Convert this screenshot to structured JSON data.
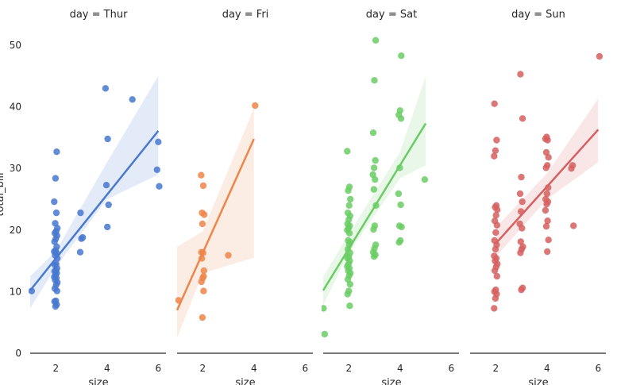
{
  "chart_data": {
    "type": "scatter",
    "grid": false,
    "shared_y": true,
    "ylim": [
      0,
      55
    ],
    "yticks": [
      0,
      10,
      20,
      30,
      40,
      50
    ],
    "y_label": "total_bill",
    "xticks": [
      2,
      4,
      6
    ],
    "fit": "linear regression with 95% confidence band",
    "panels": [
      {
        "title": "day = Thur",
        "x_label": "size",
        "color": "#4878d0",
        "xlim": [
          1,
          6.3
        ],
        "points": [
          [
            1,
            10.1
          ],
          [
            2,
            7.6
          ],
          [
            2,
            7.9
          ],
          [
            2,
            8.4
          ],
          [
            2,
            8.5
          ],
          [
            2,
            10.1
          ],
          [
            2,
            10.5
          ],
          [
            2,
            11.1
          ],
          [
            2,
            11.5
          ],
          [
            2,
            11.9
          ],
          [
            2,
            12.2
          ],
          [
            2,
            12.4
          ],
          [
            2,
            12.7
          ],
          [
            2,
            13.0
          ],
          [
            2,
            13.3
          ],
          [
            2,
            13.4
          ],
          [
            2,
            13.8
          ],
          [
            2,
            14.3
          ],
          [
            2,
            14.5
          ],
          [
            2,
            15.4
          ],
          [
            2,
            15.9
          ],
          [
            2,
            16.3
          ],
          [
            2,
            16.5
          ],
          [
            2,
            16.7
          ],
          [
            2,
            17.3
          ],
          [
            2,
            18.1
          ],
          [
            2,
            18.6
          ],
          [
            2,
            19.1
          ],
          [
            2,
            19.5
          ],
          [
            2,
            19.8
          ],
          [
            2,
            20.3
          ],
          [
            2,
            21.1
          ],
          [
            2,
            22.8
          ],
          [
            2,
            24.6
          ],
          [
            2,
            28.4
          ],
          [
            2,
            32.7
          ],
          [
            3,
            16.4
          ],
          [
            3,
            18.6
          ],
          [
            3,
            18.8
          ],
          [
            3,
            22.8
          ],
          [
            4,
            20.5
          ],
          [
            4,
            24.1
          ],
          [
            4,
            27.3
          ],
          [
            4,
            34.8
          ],
          [
            4,
            43.0
          ],
          [
            5,
            41.2
          ],
          [
            6,
            27.1
          ],
          [
            6,
            29.8
          ],
          [
            6,
            34.3
          ]
        ],
        "regression": [
          [
            1,
            10.2
          ],
          [
            6,
            36.1
          ]
        ],
        "ci_band": [
          [
            1,
            7.3,
            12.5
          ],
          [
            2,
            14.0,
            16.6
          ],
          [
            4,
            25.0,
            31.0
          ],
          [
            6,
            29.0,
            45.0
          ]
        ]
      },
      {
        "title": "day = Fri",
        "x_label": "size",
        "color": "#ee854a",
        "xlim": [
          1,
          6.3
        ],
        "points": [
          [
            1,
            8.6
          ],
          [
            2,
            5.8
          ],
          [
            2,
            10.1
          ],
          [
            2,
            11.6
          ],
          [
            2,
            12.2
          ],
          [
            2,
            13.4
          ],
          [
            2,
            15.4
          ],
          [
            2,
            16.3
          ],
          [
            2,
            22.5
          ],
          [
            2,
            22.8
          ],
          [
            2,
            27.2
          ],
          [
            2,
            28.9
          ],
          [
            2,
            21.0
          ],
          [
            2,
            12.5
          ],
          [
            2,
            16.4
          ],
          [
            3,
            15.9
          ],
          [
            4,
            40.2
          ]
        ],
        "regression": [
          [
            1,
            7.0
          ],
          [
            4,
            34.8
          ]
        ],
        "ci_band": [
          [
            1,
            2.5,
            17.3
          ],
          [
            2,
            13.0,
            19.8
          ],
          [
            4,
            15.5,
            39.8
          ]
        ]
      },
      {
        "title": "day = Sat",
        "x_label": "size",
        "color": "#6acc64",
        "xlim": [
          1,
          6.3
        ],
        "points": [
          [
            1,
            3.1
          ],
          [
            1,
            7.3
          ],
          [
            2,
            7.7
          ],
          [
            2,
            9.6
          ],
          [
            2,
            10.1
          ],
          [
            2,
            11.2
          ],
          [
            2,
            12.0
          ],
          [
            2,
            12.6
          ],
          [
            2,
            13.0
          ],
          [
            2,
            13.4
          ],
          [
            2,
            13.8
          ],
          [
            2,
            14.1
          ],
          [
            2,
            14.5
          ],
          [
            2,
            15.0
          ],
          [
            2,
            15.4
          ],
          [
            2,
            15.7
          ],
          [
            2,
            16.3
          ],
          [
            2,
            16.9
          ],
          [
            2,
            17.6
          ],
          [
            2,
            18.0
          ],
          [
            2,
            18.3
          ],
          [
            2,
            19.5
          ],
          [
            2,
            20.0
          ],
          [
            2,
            20.3
          ],
          [
            2,
            20.7
          ],
          [
            2,
            21.0
          ],
          [
            2,
            21.7
          ],
          [
            2,
            22.3
          ],
          [
            2,
            22.8
          ],
          [
            2,
            24.0
          ],
          [
            2,
            25.0
          ],
          [
            2,
            26.4
          ],
          [
            2,
            27.0
          ],
          [
            2,
            32.8
          ],
          [
            3,
            15.7
          ],
          [
            3,
            16.0
          ],
          [
            3,
            16.4
          ],
          [
            3,
            17.0
          ],
          [
            3,
            17.6
          ],
          [
            3,
            20.1
          ],
          [
            3,
            20.7
          ],
          [
            3,
            24.0
          ],
          [
            3,
            26.6
          ],
          [
            3,
            28.2
          ],
          [
            3,
            29.0
          ],
          [
            3,
            30.1
          ],
          [
            3,
            31.3
          ],
          [
            3,
            35.8
          ],
          [
            3,
            44.3
          ],
          [
            3,
            50.8
          ],
          [
            4,
            18.0
          ],
          [
            4,
            18.3
          ],
          [
            4,
            20.5
          ],
          [
            4,
            20.7
          ],
          [
            4,
            24.1
          ],
          [
            4,
            25.9
          ],
          [
            4,
            30.1
          ],
          [
            4,
            38.1
          ],
          [
            4,
            38.7
          ],
          [
            4,
            39.4
          ],
          [
            4,
            48.3
          ],
          [
            5,
            28.2
          ]
        ],
        "regression": [
          [
            1,
            10.2
          ],
          [
            5,
            37.3
          ]
        ],
        "ci_band": [
          [
            1,
            7.8,
            12.4
          ],
          [
            2,
            16.3,
            19.4
          ],
          [
            4,
            28.4,
            32.7
          ],
          [
            5,
            30.5,
            45.0
          ]
        ]
      },
      {
        "title": "day = Sun",
        "x_label": "size",
        "color": "#d65f5f",
        "xlim": [
          1,
          6.3
        ],
        "points": [
          [
            2,
            7.3
          ],
          [
            2,
            8.9
          ],
          [
            2,
            9.6
          ],
          [
            2,
            10.0
          ],
          [
            2,
            10.3
          ],
          [
            2,
            12.5
          ],
          [
            2,
            13.4
          ],
          [
            2,
            14.0
          ],
          [
            2,
            14.5
          ],
          [
            2,
            15.0
          ],
          [
            2,
            15.4
          ],
          [
            2,
            15.8
          ],
          [
            2,
            16.9
          ],
          [
            2,
            17.6
          ],
          [
            2,
            18.3
          ],
          [
            2,
            19.6
          ],
          [
            2,
            20.8
          ],
          [
            2,
            21.5
          ],
          [
            2,
            22.4
          ],
          [
            2,
            23.3
          ],
          [
            2,
            23.7
          ],
          [
            2,
            24.0
          ],
          [
            2,
            32.0
          ],
          [
            2,
            32.9
          ],
          [
            2,
            34.6
          ],
          [
            2,
            40.5
          ],
          [
            3,
            10.3
          ],
          [
            3,
            10.6
          ],
          [
            3,
            16.3
          ],
          [
            3,
            16.9
          ],
          [
            3,
            17.3
          ],
          [
            3,
            18.1
          ],
          [
            3,
            20.3
          ],
          [
            3,
            21.0
          ],
          [
            3,
            23.0
          ],
          [
            3,
            24.6
          ],
          [
            3,
            25.9
          ],
          [
            3,
            28.6
          ],
          [
            3,
            38.1
          ],
          [
            3,
            45.3
          ],
          [
            4,
            16.5
          ],
          [
            4,
            18.4
          ],
          [
            4,
            20.6
          ],
          [
            4,
            21.5
          ],
          [
            4,
            23.2
          ],
          [
            4,
            24.2
          ],
          [
            4,
            24.6
          ],
          [
            4,
            25.0
          ],
          [
            4,
            25.9
          ],
          [
            4,
            26.9
          ],
          [
            4,
            30.1
          ],
          [
            4,
            30.5
          ],
          [
            4,
            31.8
          ],
          [
            4,
            32.6
          ],
          [
            4,
            34.6
          ],
          [
            4,
            34.8
          ],
          [
            4,
            35.1
          ],
          [
            5,
            20.7
          ],
          [
            5,
            30.0
          ],
          [
            5,
            30.5
          ],
          [
            6,
            48.2
          ]
        ],
        "regression": [
          [
            2,
            17.8
          ],
          [
            6,
            36.3
          ]
        ],
        "ci_band": [
          [
            2,
            15.6,
            20.4
          ],
          [
            4,
            25.0,
            29.2
          ],
          [
            6,
            31.0,
            41.3
          ]
        ]
      }
    ]
  }
}
